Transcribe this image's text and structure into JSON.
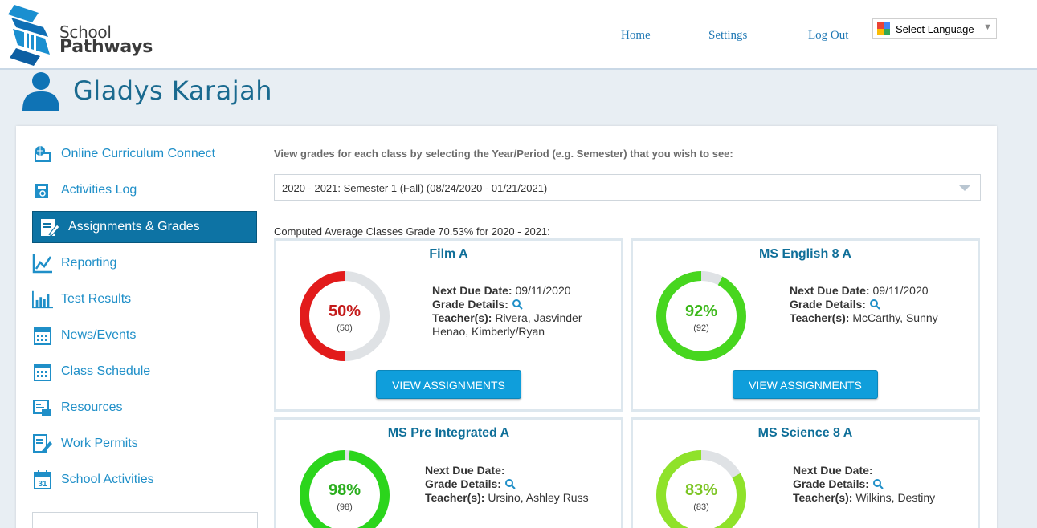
{
  "header": {
    "logo_line1": "School",
    "logo_line2": "Pathways",
    "nav": {
      "home": "Home",
      "settings": "Settings",
      "logout": "Log Out"
    },
    "language": "Select Language"
  },
  "profile": {
    "name": "Gladys Karajah"
  },
  "sidebar": {
    "items": [
      {
        "label": "Online Curriculum Connect",
        "icon": "globe-computer-icon"
      },
      {
        "label": "Activities Log",
        "icon": "log-book-icon"
      },
      {
        "label": "Assignments & Grades",
        "icon": "clipboard-pencil-icon",
        "active": true
      },
      {
        "label": "Reporting",
        "icon": "line-chart-icon"
      },
      {
        "label": "Test Results",
        "icon": "bar-chart-icon"
      },
      {
        "label": "News/Events",
        "icon": "calendar-icon"
      },
      {
        "label": "Class Schedule",
        "icon": "calendar-icon"
      },
      {
        "label": "Resources",
        "icon": "resources-icon"
      },
      {
        "label": "Work Permits",
        "icon": "document-pencil-icon"
      },
      {
        "label": "School Activities",
        "icon": "calendar-31-icon"
      }
    ]
  },
  "content": {
    "hint": "View grades for each class by selecting the Year/Period (e.g. Semester) that you wish to see:",
    "period_selected": "2020 - 2021: Semester 1 (Fall) (08/24/2020 - 01/21/2021)",
    "average": "Computed Average Classes Grade 70.53% for 2020 - 2021:"
  },
  "labels": {
    "next_due": "Next Due Date:",
    "grade_details": "Grade Details:",
    "teachers": "Teacher(s):",
    "view_assignments": "VIEW ASSIGNMENTS"
  },
  "classes": [
    {
      "title": "Film A",
      "percent": "50%",
      "score": "(50)",
      "fraction": 0.5,
      "color": "#e21b1b",
      "text_color": "#c41a1a",
      "next_due": "09/11/2020",
      "teachers_line1": "Rivera, Jasvinder",
      "teachers_line2": "Henao, Kimberly/Ryan"
    },
    {
      "title": "MS English 8 A",
      "percent": "92%",
      "score": "(92)",
      "fraction": 0.92,
      "color": "#47d61f",
      "text_color": "#3cb81a",
      "next_due": "09/11/2020",
      "teachers_line1": "McCarthy, Sunny",
      "teachers_line2": ""
    },
    {
      "title": "MS Pre Integrated A",
      "percent": "98%",
      "score": "(98)",
      "fraction": 0.98,
      "color": "#2bd51c",
      "text_color": "#2aae1d",
      "next_due": "",
      "teachers_line1": "Ursino, Ashley Russ",
      "teachers_line2": ""
    },
    {
      "title": "MS Science 8 A",
      "percent": "83%",
      "score": "(83)",
      "fraction": 0.83,
      "color": "#8fe22a",
      "text_color": "#7cc524",
      "next_due": "",
      "teachers_line1": "Wilkins, Destiny",
      "teachers_line2": ""
    }
  ]
}
